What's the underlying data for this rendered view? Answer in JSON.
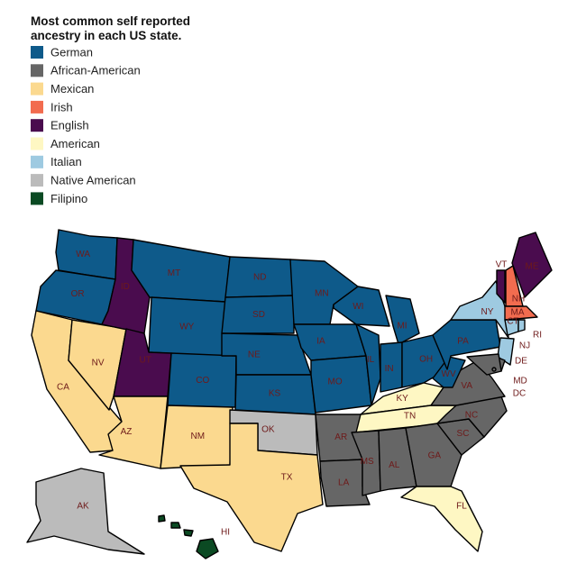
{
  "title": "Most common self reported ancestry in each US state.",
  "legend": [
    {
      "name": "German",
      "color": "#0e5a8a"
    },
    {
      "name": "African-American",
      "color": "#666666"
    },
    {
      "name": "Mexican",
      "color": "#fbd98f"
    },
    {
      "name": "Irish",
      "color": "#f26c4f"
    },
    {
      "name": "English",
      "color": "#4a0c4e"
    },
    {
      "name": "American",
      "color": "#fef7c3"
    },
    {
      "name": "Italian",
      "color": "#9ecae1"
    },
    {
      "name": "Native American",
      "color": "#bbbbbb"
    },
    {
      "name": "Filipino",
      "color": "#0b4a23"
    }
  ],
  "states": [
    {
      "label": "WA",
      "ancestry": "German"
    },
    {
      "label": "OR",
      "ancestry": "German"
    },
    {
      "label": "CA",
      "ancestry": "Mexican"
    },
    {
      "label": "NV",
      "ancestry": "Mexican"
    },
    {
      "label": "ID",
      "ancestry": "English"
    },
    {
      "label": "MT",
      "ancestry": "German"
    },
    {
      "label": "WY",
      "ancestry": "German"
    },
    {
      "label": "UT",
      "ancestry": "English"
    },
    {
      "label": "AZ",
      "ancestry": "Mexican"
    },
    {
      "label": "CO",
      "ancestry": "German"
    },
    {
      "label": "NM",
      "ancestry": "Mexican"
    },
    {
      "label": "ND",
      "ancestry": "German"
    },
    {
      "label": "SD",
      "ancestry": "German"
    },
    {
      "label": "NE",
      "ancestry": "German"
    },
    {
      "label": "KS",
      "ancestry": "German"
    },
    {
      "label": "OK",
      "ancestry": "Native American"
    },
    {
      "label": "TX",
      "ancestry": "Mexican"
    },
    {
      "label": "MN",
      "ancestry": "German"
    },
    {
      "label": "IA",
      "ancestry": "German"
    },
    {
      "label": "MO",
      "ancestry": "German"
    },
    {
      "label": "AR",
      "ancestry": "African-American"
    },
    {
      "label": "LA",
      "ancestry": "African-American"
    },
    {
      "label": "WI",
      "ancestry": "German"
    },
    {
      "label": "IL",
      "ancestry": "German"
    },
    {
      "label": "MI",
      "ancestry": "German"
    },
    {
      "label": "IN",
      "ancestry": "German"
    },
    {
      "label": "OH",
      "ancestry": "German"
    },
    {
      "label": "KY",
      "ancestry": "American"
    },
    {
      "label": "TN",
      "ancestry": "American"
    },
    {
      "label": "MS",
      "ancestry": "African-American"
    },
    {
      "label": "AL",
      "ancestry": "African-American"
    },
    {
      "label": "GA",
      "ancestry": "African-American"
    },
    {
      "label": "FL",
      "ancestry": "American"
    },
    {
      "label": "SC",
      "ancestry": "African-American"
    },
    {
      "label": "NC",
      "ancestry": "African-American"
    },
    {
      "label": "VA",
      "ancestry": "African-American"
    },
    {
      "label": "WV",
      "ancestry": "German"
    },
    {
      "label": "PA",
      "ancestry": "German"
    },
    {
      "label": "NY",
      "ancestry": "Italian"
    },
    {
      "label": "VT",
      "ancestry": "English"
    },
    {
      "label": "NH",
      "ancestry": "Irish"
    },
    {
      "label": "ME",
      "ancestry": "English"
    },
    {
      "label": "MA",
      "ancestry": "Irish"
    },
    {
      "label": "CT",
      "ancestry": "Italian"
    },
    {
      "label": "RI",
      "ancestry": "Italian"
    },
    {
      "label": "NJ",
      "ancestry": "Italian"
    },
    {
      "label": "DE",
      "ancestry": "African-American"
    },
    {
      "label": "MD",
      "ancestry": "African-American"
    },
    {
      "label": "DC",
      "ancestry": "African-American"
    },
    {
      "label": "AK",
      "ancestry": "Native American"
    },
    {
      "label": "HI",
      "ancestry": "Filipino"
    }
  ]
}
